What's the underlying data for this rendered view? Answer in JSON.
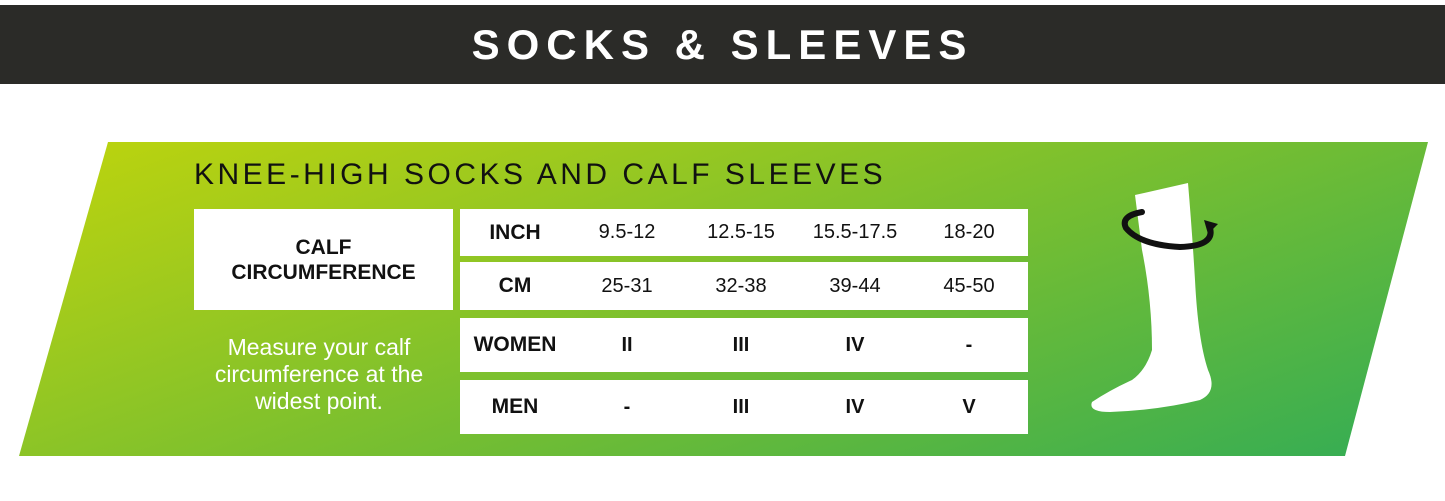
{
  "header": {
    "title": "SOCKS & SLEEVES"
  },
  "section": {
    "title": "KNEE-HIGH SOCKS AND CALF SLEEVES",
    "calf_label_line1": "CALF",
    "calf_label_line2": "CIRCUMFERENCE",
    "note": "Measure your calf circumference at the widest point."
  },
  "table": {
    "rows": [
      {
        "label": "INCH",
        "values": [
          "9.5-12",
          "12.5-15",
          "15.5-17.5",
          "18-20"
        ]
      },
      {
        "label": "CM",
        "values": [
          "25-31",
          "32-38",
          "39-44",
          "45-50"
        ]
      },
      {
        "label": "WOMEN",
        "values": [
          "II",
          "III",
          "IV",
          "-"
        ]
      },
      {
        "label": "MEN",
        "values": [
          "-",
          "III",
          "IV",
          "V"
        ]
      }
    ]
  },
  "icons": {
    "sock": "sock-with-measure-arrow-icon"
  },
  "colors": {
    "header_bg": "#2b2b28",
    "gradient_start": "#d4dc00",
    "gradient_end": "#2aaa5a"
  }
}
